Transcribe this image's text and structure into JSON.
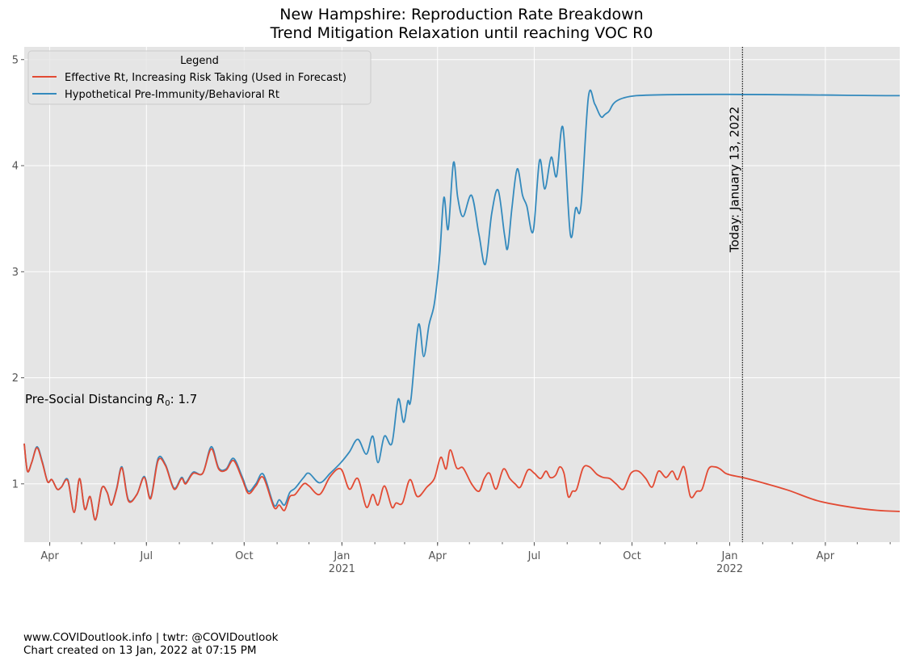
{
  "chart": {
    "title_line1": "New Hampshire: Reproduction Rate Breakdown",
    "title_line2": "Trend Mitigation Relaxation until reaching VOC R0",
    "legend_title": "Legend",
    "annotation_r0_prefix": "Pre-Social Distancing ",
    "annotation_r0_var": "R",
    "annotation_r0_sub": "0",
    "annotation_r0_value": ": 1.7",
    "today_label": "Today: January 13, 2022"
  },
  "footer": {
    "line1": "www.COVIDoutlook.info | twtr: @COVIDoutlook",
    "line2": "Chart created on 13 Jan, 2022 at 07:15 PM"
  },
  "chart_data": {
    "type": "line",
    "x_start": "2020-03-08",
    "x_end": "2022-06-10",
    "ylim": [
      0.45,
      5.12
    ],
    "y_ticks": [
      1,
      2,
      3,
      4,
      5
    ],
    "x_ticks": [
      {
        "date": "2020-04-01",
        "label": "Apr",
        "sub": ""
      },
      {
        "date": "2020-07-01",
        "label": "Jul",
        "sub": ""
      },
      {
        "date": "2020-10-01",
        "label": "Oct",
        "sub": ""
      },
      {
        "date": "2021-01-01",
        "label": "Jan",
        "sub": "2021"
      },
      {
        "date": "2021-04-01",
        "label": "Apr",
        "sub": ""
      },
      {
        "date": "2021-07-01",
        "label": "Jul",
        "sub": ""
      },
      {
        "date": "2021-10-01",
        "label": "Oct",
        "sub": ""
      },
      {
        "date": "2022-01-01",
        "label": "Jan",
        "sub": "2022"
      },
      {
        "date": "2022-04-01",
        "label": "Apr",
        "sub": ""
      }
    ],
    "today": "2022-01-13",
    "grid": true,
    "legend_position": "upper-left",
    "colors": {
      "effective": "#E24A33",
      "hypothetical": "#348ABD",
      "background": "#E5E5E5"
    },
    "series": [
      {
        "name": "Effective Rt, Increasing Risk Taking (Used in Forecast)",
        "color": "#E24A33",
        "points": [
          [
            "2020-03-08",
            1.38
          ],
          [
            "2020-03-11",
            1.12
          ],
          [
            "2020-03-15",
            1.2
          ],
          [
            "2020-03-20",
            1.34
          ],
          [
            "2020-03-25",
            1.2
          ],
          [
            "2020-03-30",
            1.02
          ],
          [
            "2020-04-03",
            1.04
          ],
          [
            "2020-04-08",
            0.95
          ],
          [
            "2020-04-12",
            0.97
          ],
          [
            "2020-04-18",
            1.03
          ],
          [
            "2020-04-24",
            0.73
          ],
          [
            "2020-04-29",
            1.05
          ],
          [
            "2020-05-04",
            0.76
          ],
          [
            "2020-05-09",
            0.88
          ],
          [
            "2020-05-14",
            0.66
          ],
          [
            "2020-05-20",
            0.96
          ],
          [
            "2020-05-25",
            0.92
          ],
          [
            "2020-05-29",
            0.8
          ],
          [
            "2020-06-03",
            0.95
          ],
          [
            "2020-06-08",
            1.15
          ],
          [
            "2020-06-14",
            0.84
          ],
          [
            "2020-06-22",
            0.9
          ],
          [
            "2020-06-29",
            1.06
          ],
          [
            "2020-07-05",
            0.86
          ],
          [
            "2020-07-12",
            1.22
          ],
          [
            "2020-07-19",
            1.17
          ],
          [
            "2020-07-27",
            0.95
          ],
          [
            "2020-08-03",
            1.05
          ],
          [
            "2020-08-07",
            1.0
          ],
          [
            "2020-08-14",
            1.1
          ],
          [
            "2020-08-23",
            1.1
          ],
          [
            "2020-08-31",
            1.33
          ],
          [
            "2020-09-07",
            1.14
          ],
          [
            "2020-09-14",
            1.13
          ],
          [
            "2020-09-21",
            1.22
          ],
          [
            "2020-09-29",
            1.05
          ],
          [
            "2020-10-05",
            0.91
          ],
          [
            "2020-10-12",
            0.98
          ],
          [
            "2020-10-19",
            1.06
          ],
          [
            "2020-10-29",
            0.78
          ],
          [
            "2020-11-03",
            0.8
          ],
          [
            "2020-11-08",
            0.75
          ],
          [
            "2020-11-13",
            0.88
          ],
          [
            "2020-11-18",
            0.9
          ],
          [
            "2020-11-26",
            1.0
          ],
          [
            "2020-12-01",
            0.98
          ],
          [
            "2020-12-11",
            0.9
          ],
          [
            "2020-12-21",
            1.07
          ],
          [
            "2020-12-31",
            1.14
          ],
          [
            "2021-01-08",
            0.95
          ],
          [
            "2021-01-16",
            1.05
          ],
          [
            "2021-01-24",
            0.78
          ],
          [
            "2021-01-30",
            0.9
          ],
          [
            "2021-02-04",
            0.8
          ],
          [
            "2021-02-10",
            0.98
          ],
          [
            "2021-02-17",
            0.78
          ],
          [
            "2021-02-21",
            0.82
          ],
          [
            "2021-02-27",
            0.82
          ],
          [
            "2021-03-06",
            1.04
          ],
          [
            "2021-03-13",
            0.88
          ],
          [
            "2021-03-22",
            0.97
          ],
          [
            "2021-03-29",
            1.05
          ],
          [
            "2021-04-04",
            1.25
          ],
          [
            "2021-04-09",
            1.14
          ],
          [
            "2021-04-13",
            1.32
          ],
          [
            "2021-04-19",
            1.15
          ],
          [
            "2021-04-25",
            1.15
          ],
          [
            "2021-05-03",
            1.0
          ],
          [
            "2021-05-10",
            0.93
          ],
          [
            "2021-05-15",
            1.05
          ],
          [
            "2021-05-20",
            1.1
          ],
          [
            "2021-05-26",
            0.95
          ],
          [
            "2021-06-02",
            1.14
          ],
          [
            "2021-06-08",
            1.05
          ],
          [
            "2021-06-13",
            1.0
          ],
          [
            "2021-06-18",
            0.97
          ],
          [
            "2021-06-25",
            1.13
          ],
          [
            "2021-07-01",
            1.1
          ],
          [
            "2021-07-07",
            1.05
          ],
          [
            "2021-07-12",
            1.12
          ],
          [
            "2021-07-16",
            1.06
          ],
          [
            "2021-07-21",
            1.08
          ],
          [
            "2021-07-25",
            1.16
          ],
          [
            "2021-07-29",
            1.1
          ],
          [
            "2021-08-02",
            0.88
          ],
          [
            "2021-08-06",
            0.93
          ],
          [
            "2021-08-10",
            0.95
          ],
          [
            "2021-08-16",
            1.15
          ],
          [
            "2021-08-22",
            1.16
          ],
          [
            "2021-08-29",
            1.09
          ],
          [
            "2021-09-04",
            1.06
          ],
          [
            "2021-09-10",
            1.05
          ],
          [
            "2021-09-16",
            1.0
          ],
          [
            "2021-09-23",
            0.95
          ],
          [
            "2021-09-30",
            1.1
          ],
          [
            "2021-10-07",
            1.12
          ],
          [
            "2021-10-14",
            1.05
          ],
          [
            "2021-10-20",
            0.97
          ],
          [
            "2021-10-26",
            1.12
          ],
          [
            "2021-11-02",
            1.06
          ],
          [
            "2021-11-08",
            1.12
          ],
          [
            "2021-11-13",
            1.04
          ],
          [
            "2021-11-19",
            1.16
          ],
          [
            "2021-11-25",
            0.88
          ],
          [
            "2021-12-01",
            0.93
          ],
          [
            "2021-12-06",
            0.95
          ],
          [
            "2021-12-12",
            1.14
          ],
          [
            "2021-12-18",
            1.16
          ],
          [
            "2021-12-23",
            1.14
          ],
          [
            "2021-12-28",
            1.1
          ],
          [
            "2022-01-03",
            1.08
          ],
          [
            "2022-01-13",
            1.06
          ],
          [
            "2022-02-01",
            1.01
          ],
          [
            "2022-02-25",
            0.94
          ],
          [
            "2022-03-25",
            0.84
          ],
          [
            "2022-04-25",
            0.78
          ],
          [
            "2022-05-20",
            0.75
          ],
          [
            "2022-06-10",
            0.74
          ]
        ]
      },
      {
        "name": "Hypothetical Pre-Immunity/Behavioral Rt",
        "color": "#348ABD",
        "points": [
          [
            "2020-03-08",
            1.38
          ],
          [
            "2020-03-11",
            1.12
          ],
          [
            "2020-03-15",
            1.2
          ],
          [
            "2020-03-20",
            1.35
          ],
          [
            "2020-03-25",
            1.21
          ],
          [
            "2020-03-30",
            1.02
          ],
          [
            "2020-04-03",
            1.04
          ],
          [
            "2020-04-08",
            0.95
          ],
          [
            "2020-04-12",
            0.97
          ],
          [
            "2020-04-18",
            1.04
          ],
          [
            "2020-04-24",
            0.73
          ],
          [
            "2020-04-29",
            1.05
          ],
          [
            "2020-05-04",
            0.76
          ],
          [
            "2020-05-09",
            0.88
          ],
          [
            "2020-05-14",
            0.66
          ],
          [
            "2020-05-20",
            0.96
          ],
          [
            "2020-05-25",
            0.92
          ],
          [
            "2020-05-29",
            0.8
          ],
          [
            "2020-06-03",
            0.96
          ],
          [
            "2020-06-08",
            1.16
          ],
          [
            "2020-06-14",
            0.85
          ],
          [
            "2020-06-22",
            0.9
          ],
          [
            "2020-06-29",
            1.07
          ],
          [
            "2020-07-05",
            0.87
          ],
          [
            "2020-07-12",
            1.24
          ],
          [
            "2020-07-19",
            1.18
          ],
          [
            "2020-07-27",
            0.96
          ],
          [
            "2020-08-03",
            1.06
          ],
          [
            "2020-08-07",
            1.01
          ],
          [
            "2020-08-14",
            1.11
          ],
          [
            "2020-08-23",
            1.1
          ],
          [
            "2020-08-31",
            1.35
          ],
          [
            "2020-09-07",
            1.15
          ],
          [
            "2020-09-14",
            1.14
          ],
          [
            "2020-09-21",
            1.24
          ],
          [
            "2020-09-29",
            1.07
          ],
          [
            "2020-10-05",
            0.93
          ],
          [
            "2020-10-12",
            1.0
          ],
          [
            "2020-10-19",
            1.09
          ],
          [
            "2020-10-29",
            0.8
          ],
          [
            "2020-11-03",
            0.85
          ],
          [
            "2020-11-08",
            0.8
          ],
          [
            "2020-11-13",
            0.92
          ],
          [
            "2020-11-18",
            0.96
          ],
          [
            "2020-11-26",
            1.06
          ],
          [
            "2020-12-01",
            1.1
          ],
          [
            "2020-12-11",
            1.01
          ],
          [
            "2020-12-21",
            1.1
          ],
          [
            "2020-12-31",
            1.2
          ],
          [
            "2021-01-08",
            1.3
          ],
          [
            "2021-01-16",
            1.42
          ],
          [
            "2021-01-24",
            1.28
          ],
          [
            "2021-01-30",
            1.45
          ],
          [
            "2021-02-04",
            1.2
          ],
          [
            "2021-02-10",
            1.45
          ],
          [
            "2021-02-17",
            1.38
          ],
          [
            "2021-02-23",
            1.8
          ],
          [
            "2021-02-28",
            1.58
          ],
          [
            "2021-03-04",
            1.78
          ],
          [
            "2021-03-07",
            1.8
          ],
          [
            "2021-03-14",
            2.5
          ],
          [
            "2021-03-19",
            2.2
          ],
          [
            "2021-03-24",
            2.5
          ],
          [
            "2021-03-29",
            2.7
          ],
          [
            "2021-04-03",
            3.15
          ],
          [
            "2021-04-07",
            3.7
          ],
          [
            "2021-04-11",
            3.4
          ],
          [
            "2021-04-16",
            4.03
          ],
          [
            "2021-04-20",
            3.7
          ],
          [
            "2021-04-25",
            3.52
          ],
          [
            "2021-05-03",
            3.72
          ],
          [
            "2021-05-10",
            3.35
          ],
          [
            "2021-05-16",
            3.07
          ],
          [
            "2021-05-22",
            3.55
          ],
          [
            "2021-05-28",
            3.77
          ],
          [
            "2021-06-03",
            3.35
          ],
          [
            "2021-06-06",
            3.22
          ],
          [
            "2021-06-10",
            3.6
          ],
          [
            "2021-06-15",
            3.97
          ],
          [
            "2021-06-20",
            3.72
          ],
          [
            "2021-06-24",
            3.62
          ],
          [
            "2021-06-30",
            3.38
          ],
          [
            "2021-07-06",
            4.05
          ],
          [
            "2021-07-11",
            3.78
          ],
          [
            "2021-07-17",
            4.08
          ],
          [
            "2021-07-22",
            3.9
          ],
          [
            "2021-07-28",
            4.36
          ],
          [
            "2021-08-04",
            3.35
          ],
          [
            "2021-08-09",
            3.6
          ],
          [
            "2021-08-14",
            3.62
          ],
          [
            "2021-08-21",
            4.65
          ],
          [
            "2021-08-27",
            4.58
          ],
          [
            "2021-09-02",
            4.46
          ],
          [
            "2021-09-08",
            4.5
          ],
          [
            "2021-10-05",
            4.66
          ],
          [
            "2022-06-10",
            4.66
          ]
        ]
      }
    ]
  }
}
